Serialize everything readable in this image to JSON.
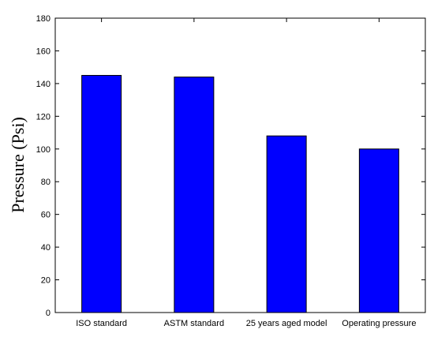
{
  "chart_data": {
    "type": "bar",
    "categories": [
      "ISO standard",
      "ASTM standard",
      "25 years aged model",
      "Operating pressure"
    ],
    "values": [
      145,
      144,
      108,
      100
    ],
    "title": "",
    "xlabel": "",
    "ylabel": "Pressure (Psi)",
    "ylim": [
      0,
      180
    ],
    "yticks": [
      0,
      20,
      40,
      60,
      80,
      100,
      120,
      140,
      160,
      180
    ],
    "grid": false,
    "bar_color": "#0000ff",
    "bar_edge_color": "#000000"
  }
}
